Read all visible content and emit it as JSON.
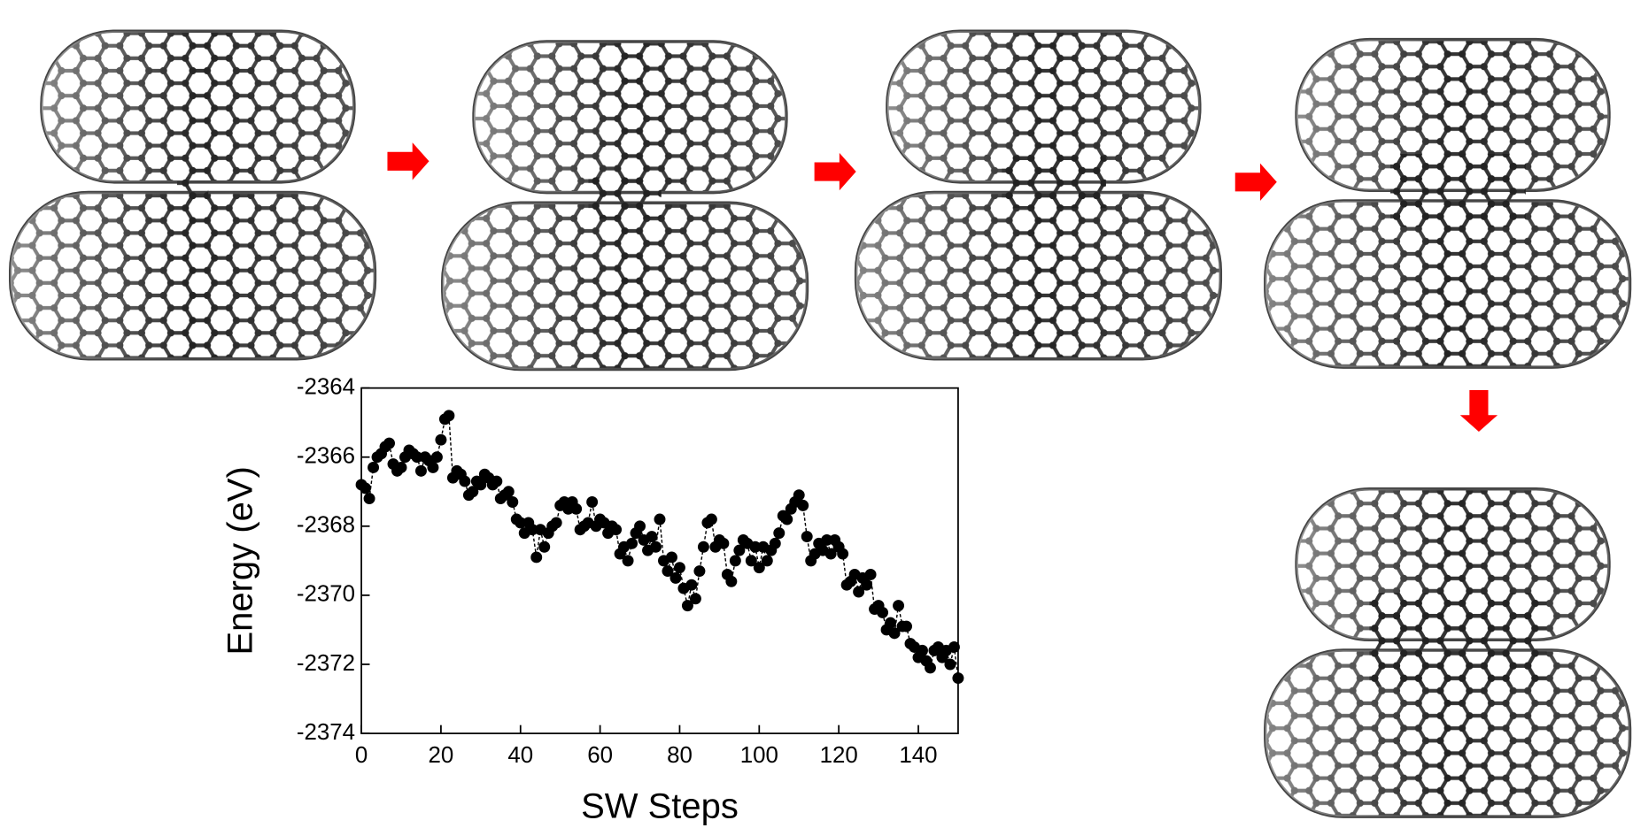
{
  "chart_data": {
    "type": "line",
    "x_label": "SW Steps",
    "y_label": "Energy (eV)",
    "x": [
      0,
      1,
      2,
      3,
      4,
      5,
      6,
      7,
      8,
      9,
      10,
      11,
      12,
      13,
      14,
      15,
      16,
      17,
      18,
      19,
      20,
      21,
      22,
      23,
      24,
      25,
      26,
      27,
      28,
      29,
      30,
      31,
      32,
      33,
      34,
      35,
      36,
      37,
      38,
      39,
      40,
      41,
      42,
      43,
      44,
      45,
      46,
      47,
      48,
      49,
      50,
      51,
      52,
      53,
      54,
      55,
      56,
      57,
      58,
      59,
      60,
      61,
      62,
      63,
      64,
      65,
      66,
      67,
      68,
      69,
      70,
      71,
      72,
      73,
      74,
      75,
      76,
      77,
      78,
      79,
      80,
      81,
      82,
      83,
      84,
      85,
      86,
      87,
      88,
      89,
      90,
      91,
      92,
      93,
      94,
      95,
      96,
      97,
      98,
      99,
      100,
      101,
      102,
      103,
      104,
      105,
      106,
      107,
      108,
      109,
      110,
      111,
      112,
      113,
      114,
      115,
      116,
      117,
      118,
      119,
      120,
      121,
      122,
      123,
      124,
      125,
      126,
      127,
      128,
      129,
      130,
      131,
      132,
      133,
      134,
      135,
      136,
      137,
      138,
      139,
      140,
      141,
      142,
      143,
      144,
      145,
      146,
      147,
      148,
      149,
      150
    ],
    "values": [
      -2366.8,
      -2366.9,
      -2367.2,
      -2366.3,
      -2366.0,
      -2365.9,
      -2365.7,
      -2365.6,
      -2366.2,
      -2366.4,
      -2366.3,
      -2366.0,
      -2365.8,
      -2365.9,
      -2366.0,
      -2366.4,
      -2366.0,
      -2366.1,
      -2366.3,
      -2366.0,
      -2365.5,
      -2364.9,
      -2364.8,
      -2366.6,
      -2366.4,
      -2366.5,
      -2366.7,
      -2367.1,
      -2367.0,
      -2366.7,
      -2366.8,
      -2366.5,
      -2366.6,
      -2366.8,
      -2366.7,
      -2367.2,
      -2367.1,
      -2367.0,
      -2367.3,
      -2367.8,
      -2367.9,
      -2368.2,
      -2367.9,
      -2368.1,
      -2368.9,
      -2368.1,
      -2368.6,
      -2368.2,
      -2368.0,
      -2367.9,
      -2367.4,
      -2367.3,
      -2367.5,
      -2367.3,
      -2367.5,
      -2368.1,
      -2368.0,
      -2367.9,
      -2367.3,
      -2368.0,
      -2367.8,
      -2367.9,
      -2368.2,
      -2368.0,
      -2368.1,
      -2368.8,
      -2368.6,
      -2369.0,
      -2368.5,
      -2368.2,
      -2368.0,
      -2368.4,
      -2368.7,
      -2368.3,
      -2368.6,
      -2367.8,
      -2369.0,
      -2369.3,
      -2368.9,
      -2369.5,
      -2369.2,
      -2369.8,
      -2370.3,
      -2369.7,
      -2370.1,
      -2369.3,
      -2368.6,
      -2367.9,
      -2367.8,
      -2368.6,
      -2368.4,
      -2368.5,
      -2369.4,
      -2369.6,
      -2369.0,
      -2368.7,
      -2368.4,
      -2368.5,
      -2369.0,
      -2368.6,
      -2369.2,
      -2368.6,
      -2369.0,
      -2368.7,
      -2368.5,
      -2368.2,
      -2367.7,
      -2367.8,
      -2367.5,
      -2367.3,
      -2367.1,
      -2367.4,
      -2368.3,
      -2369.0,
      -2368.8,
      -2368.5,
      -2368.7,
      -2368.4,
      -2368.8,
      -2368.4,
      -2368.6,
      -2368.8,
      -2369.7,
      -2369.6,
      -2369.4,
      -2369.9,
      -2369.5,
      -2369.7,
      -2369.4,
      -2370.4,
      -2370.3,
      -2370.5,
      -2371.0,
      -2370.8,
      -2371.1,
      -2370.3,
      -2370.9,
      -2370.9,
      -2371.4,
      -2371.5,
      -2371.8,
      -2371.6,
      -2371.9,
      -2372.1,
      -2371.6,
      -2371.5,
      -2371.8,
      -2371.6,
      -2372.0,
      -2371.5,
      -2372.4
    ],
    "color": "#000000",
    "xlim": [
      0,
      150
    ],
    "xticks": [
      0,
      20,
      40,
      60,
      80,
      100,
      120,
      140
    ],
    "ylim": [
      -2374,
      -2364
    ],
    "yticks": [
      -2374,
      -2372,
      -2370,
      -2368,
      -2366,
      -2364
    ]
  }
}
